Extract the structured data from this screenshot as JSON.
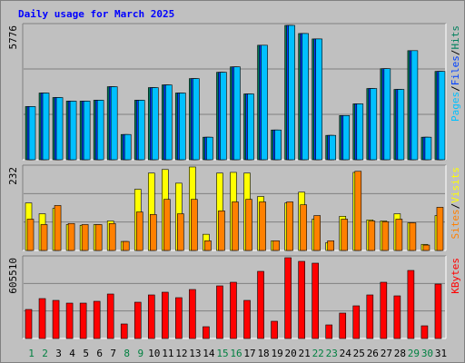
{
  "title": "Daily usage for March 2025",
  "legend_separator": "/",
  "chart_data": [
    {
      "type": "bar",
      "ylim": [
        0,
        5776
      ],
      "yticks": [
        5776
      ],
      "series": [
        {
          "name": "Hits",
          "color": "#00805c",
          "values": [
            2287,
            2869,
            2675,
            2520,
            2520,
            2558,
            3140,
            1085,
            2558,
            3101,
            3217,
            2869,
            3489,
            969,
            3760,
            3993,
            2830,
            4923,
            1279,
            5776,
            5427,
            5194,
            1047,
            1900,
            2403,
            3062,
            3915,
            3024,
            4690,
            969,
            3799
          ]
        },
        {
          "name": "Files",
          "color": "#0040ff",
          "values": [
            2287,
            2869,
            2675,
            2520,
            2520,
            2558,
            3140,
            1085,
            2558,
            3101,
            3217,
            2869,
            3489,
            969,
            3760,
            3993,
            2830,
            4923,
            1279,
            5776,
            5427,
            5194,
            1047,
            1900,
            2403,
            3062,
            3915,
            3024,
            4690,
            969,
            3799
          ]
        },
        {
          "name": "Pages",
          "color": "#00c0ff",
          "values": [
            2287,
            2869,
            2675,
            2520,
            2520,
            2558,
            3140,
            1085,
            2558,
            3101,
            3217,
            2869,
            3489,
            969,
            3760,
            3993,
            2830,
            4923,
            1279,
            5776,
            5427,
            5194,
            1047,
            1900,
            2403,
            3062,
            3915,
            3024,
            4690,
            969,
            3799
          ]
        }
      ]
    },
    {
      "type": "bar",
      "ylim": [
        0,
        232
      ],
      "yticks": [
        232
      ],
      "series": [
        {
          "name": "Visits",
          "color": "#ffff00",
          "values": [
            132,
            102,
            117,
            72,
            70,
            72,
            82,
            25,
            170,
            215,
            225,
            187,
            232,
            45,
            215,
            217,
            215,
            150,
            27,
            132,
            162,
            87,
            22,
            95,
            217,
            85,
            82,
            102,
            77,
            17,
            97
          ]
        },
        {
          "name": "Sites",
          "color": "#ff8000",
          "values": [
            87,
            72,
            125,
            75,
            72,
            72,
            75,
            25,
            107,
            100,
            142,
            102,
            142,
            27,
            110,
            135,
            142,
            135,
            27,
            135,
            127,
            97,
            27,
            87,
            220,
            82,
            80,
            87,
            77,
            15,
            120
          ]
        }
      ]
    },
    {
      "type": "bar",
      "ylim": [
        0,
        605510
      ],
      "yticks": [
        605510
      ],
      "categories": [
        "1",
        "2",
        "3",
        "4",
        "5",
        "6",
        "7",
        "8",
        "9",
        "10",
        "11",
        "12",
        "13",
        "14",
        "15",
        "16",
        "17",
        "18",
        "19",
        "20",
        "21",
        "22",
        "23",
        "24",
        "25",
        "26",
        "27",
        "28",
        "29",
        "30",
        "31"
      ],
      "category_colors": [
        "#008040",
        "#008040",
        "#000000",
        "#000000",
        "#000000",
        "#000000",
        "#000000",
        "#008040",
        "#008040",
        "#000000",
        "#000000",
        "#000000",
        "#000000",
        "#000000",
        "#008040",
        "#008040",
        "#000000",
        "#000000",
        "#000000",
        "#000000",
        "#000000",
        "#008040",
        "#008040",
        "#000000",
        "#000000",
        "#000000",
        "#000000",
        "#000000",
        "#008040",
        "#008040",
        "#000000"
      ],
      "series": [
        {
          "name": "KBytes",
          "color": "#ff0000",
          "values": [
            217700,
            299300,
            285700,
            265300,
            265300,
            278900,
            333400,
            108900,
            272100,
            326600,
            347000,
            306100,
            367400,
            88400,
            394600,
            421800,
            285700,
            503400,
            129300,
            605510,
            578300,
            564700,
            102000,
            190500,
            244900,
            326600,
            421800,
            319700,
            510200,
            95200,
            408200
          ]
        }
      ]
    }
  ]
}
